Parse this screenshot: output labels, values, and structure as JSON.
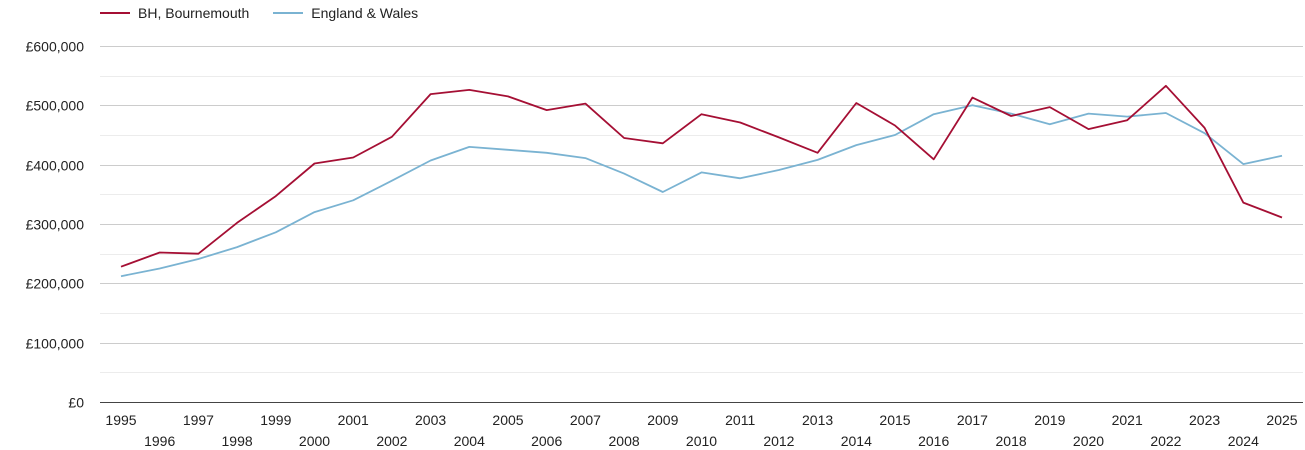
{
  "chart_data": {
    "type": "line",
    "title": "",
    "xlabel": "",
    "ylabel": "",
    "x": [
      1995,
      1996,
      1997,
      1998,
      1999,
      2000,
      2001,
      2002,
      2003,
      2004,
      2005,
      2006,
      2007,
      2008,
      2009,
      2010,
      2011,
      2012,
      2013,
      2014,
      2015,
      2016,
      2017,
      2018,
      2019,
      2020,
      2021,
      2022,
      2023,
      2024,
      2025
    ],
    "ylim": [
      0,
      600000
    ],
    "yticks": [
      0,
      100000,
      200000,
      300000,
      400000,
      500000,
      600000
    ],
    "ytick_labels": [
      "£0",
      "£100,000",
      "£200,000",
      "£300,000",
      "£400,000",
      "£500,000",
      "£600,000"
    ],
    "xtick_labels": [
      "1995",
      "1996",
      "1997",
      "1998",
      "1999",
      "2000",
      "2001",
      "2002",
      "2003",
      "2004",
      "2005",
      "2006",
      "2007",
      "2008",
      "2009",
      "2010",
      "2011",
      "2012",
      "2013",
      "2014",
      "2015",
      "2016",
      "2017",
      "2018",
      "2019",
      "2020",
      "2021",
      "2022",
      "2023",
      "2024",
      "2025"
    ],
    "grid": true,
    "legend_position": "top-left",
    "series": [
      {
        "name": "BH, Bournemouth",
        "color": "#a50f34",
        "values": [
          228000,
          252000,
          250000,
          302000,
          347000,
          402000,
          412000,
          447000,
          519000,
          526000,
          515000,
          492000,
          503000,
          445000,
          436000,
          485000,
          471000,
          446000,
          420000,
          504000,
          466000,
          409000,
          513000,
          482000,
          497000,
          460000,
          475000,
          533000,
          462000,
          336000,
          311000
        ]
      },
      {
        "name": "England & Wales",
        "color": "#7ab3d2",
        "values": [
          212000,
          225000,
          241000,
          261000,
          286000,
          320000,
          340000,
          373000,
          407000,
          430000,
          425000,
          420000,
          411000,
          385000,
          354000,
          387000,
          377000,
          391000,
          408000,
          433000,
          450000,
          485000,
          500000,
          486000,
          468000,
          486000,
          481000,
          487000,
          453000,
          401000,
          415000
        ]
      }
    ]
  }
}
